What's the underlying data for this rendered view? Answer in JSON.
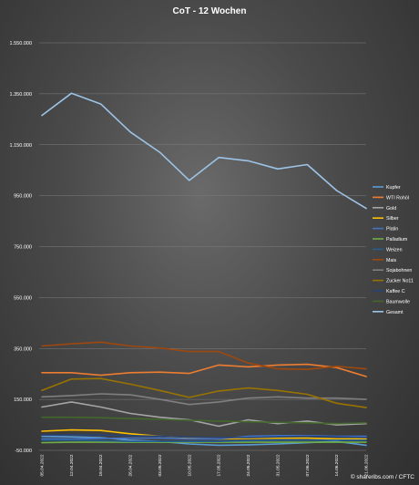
{
  "chart_data": {
    "type": "line",
    "title": "CoT - 12 Wochen",
    "credit": "© shareribs.com / CFTC",
    "grid": true,
    "legend_position": "right",
    "ylim": [
      -50000,
      1550000
    ],
    "y_ticks": [
      "1.550.000",
      "1.350.000",
      "1.150.000",
      "950.000",
      "750.000",
      "550.000",
      "350.000",
      "150.000",
      "-50.000"
    ],
    "y_tick_values": [
      1550000,
      1350000,
      1150000,
      950000,
      750000,
      550000,
      350000,
      150000,
      -50000
    ],
    "categories": [
      "05.04.2022",
      "12.04.2022",
      "19.04.2022",
      "26.04.2022",
      "03.05.2022",
      "10.05.2022",
      "17.05.2022",
      "24.05.2022",
      "31.05.2022",
      "07.06.2022",
      "14.06.2022",
      "21.06.2022"
    ],
    "series": [
      {
        "name": "Kupfer",
        "color": "#5b9bd5",
        "values": [
          5000,
          3000,
          0,
          -10000,
          -15000,
          -25000,
          -30000,
          -28000,
          -25000,
          -20000,
          -15000,
          -30000
        ]
      },
      {
        "name": "WTI Rohöl",
        "color": "#ed7d31",
        "values": [
          255000,
          255000,
          245000,
          255000,
          257000,
          252000,
          285000,
          278000,
          285000,
          288000,
          275000,
          240000
        ]
      },
      {
        "name": "Gold",
        "color": "#a5a5a5",
        "values": [
          120000,
          140000,
          120000,
          95000,
          80000,
          70000,
          45000,
          70000,
          55000,
          65000,
          50000,
          55000
        ]
      },
      {
        "name": "Silber",
        "color": "#ffc000",
        "values": [
          25000,
          30000,
          28000,
          15000,
          5000,
          0,
          -5000,
          -3000,
          -2000,
          -2000,
          -5000,
          -5000
        ]
      },
      {
        "name": "Platin",
        "color": "#4472c4",
        "values": [
          -5000,
          -5000,
          -3000,
          -2000,
          -2000,
          -5000,
          -5000,
          5000,
          8000,
          8000,
          5000,
          5000
        ]
      },
      {
        "name": "Palladium",
        "color": "#70ad47",
        "values": [
          -20000,
          -18000,
          -18000,
          -18000,
          -18000,
          -18000,
          -18000,
          -18000,
          -18000,
          -18000,
          -18000,
          -18000
        ]
      },
      {
        "name": "Weizen",
        "color": "#255e91",
        "values": [
          -10000,
          -10000,
          -12000,
          -15000,
          -15000,
          -15000,
          -15000,
          -12000,
          -10000,
          -10000,
          -10000,
          -10000
        ]
      },
      {
        "name": "Mais",
        "color": "#9e480e",
        "values": [
          360000,
          368000,
          375000,
          360000,
          352000,
          338000,
          338000,
          293000,
          270000,
          268000,
          280000,
          270000
        ]
      },
      {
        "name": "Sojabohnen",
        "color": "#7f7f7f",
        "values": [
          160000,
          165000,
          172000,
          168000,
          150000,
          130000,
          140000,
          155000,
          160000,
          155000,
          155000,
          150000
        ]
      },
      {
        "name": "Zucker No11",
        "color": "#997300",
        "values": [
          185000,
          230000,
          232000,
          210000,
          185000,
          158000,
          183000,
          195000,
          185000,
          170000,
          135000,
          118000
        ]
      },
      {
        "name": "Kaffee C",
        "color": "#264478",
        "values": [
          10000,
          10000,
          10000,
          8000,
          5000,
          2000,
          0,
          0,
          3000,
          5000,
          3000,
          0
        ]
      },
      {
        "name": "Baumwolle",
        "color": "#43682b",
        "values": [
          80000,
          80000,
          78000,
          75000,
          72000,
          68000,
          65000,
          62000,
          60000,
          58000,
          55000,
          58000
        ]
      },
      {
        "name": "Gesamt",
        "color": "#9dc3e6",
        "values": [
          1265000,
          1352000,
          1310000,
          1200000,
          1120000,
          1010000,
          1100000,
          1087000,
          1055000,
          1072000,
          970000,
          900000
        ]
      }
    ]
  }
}
